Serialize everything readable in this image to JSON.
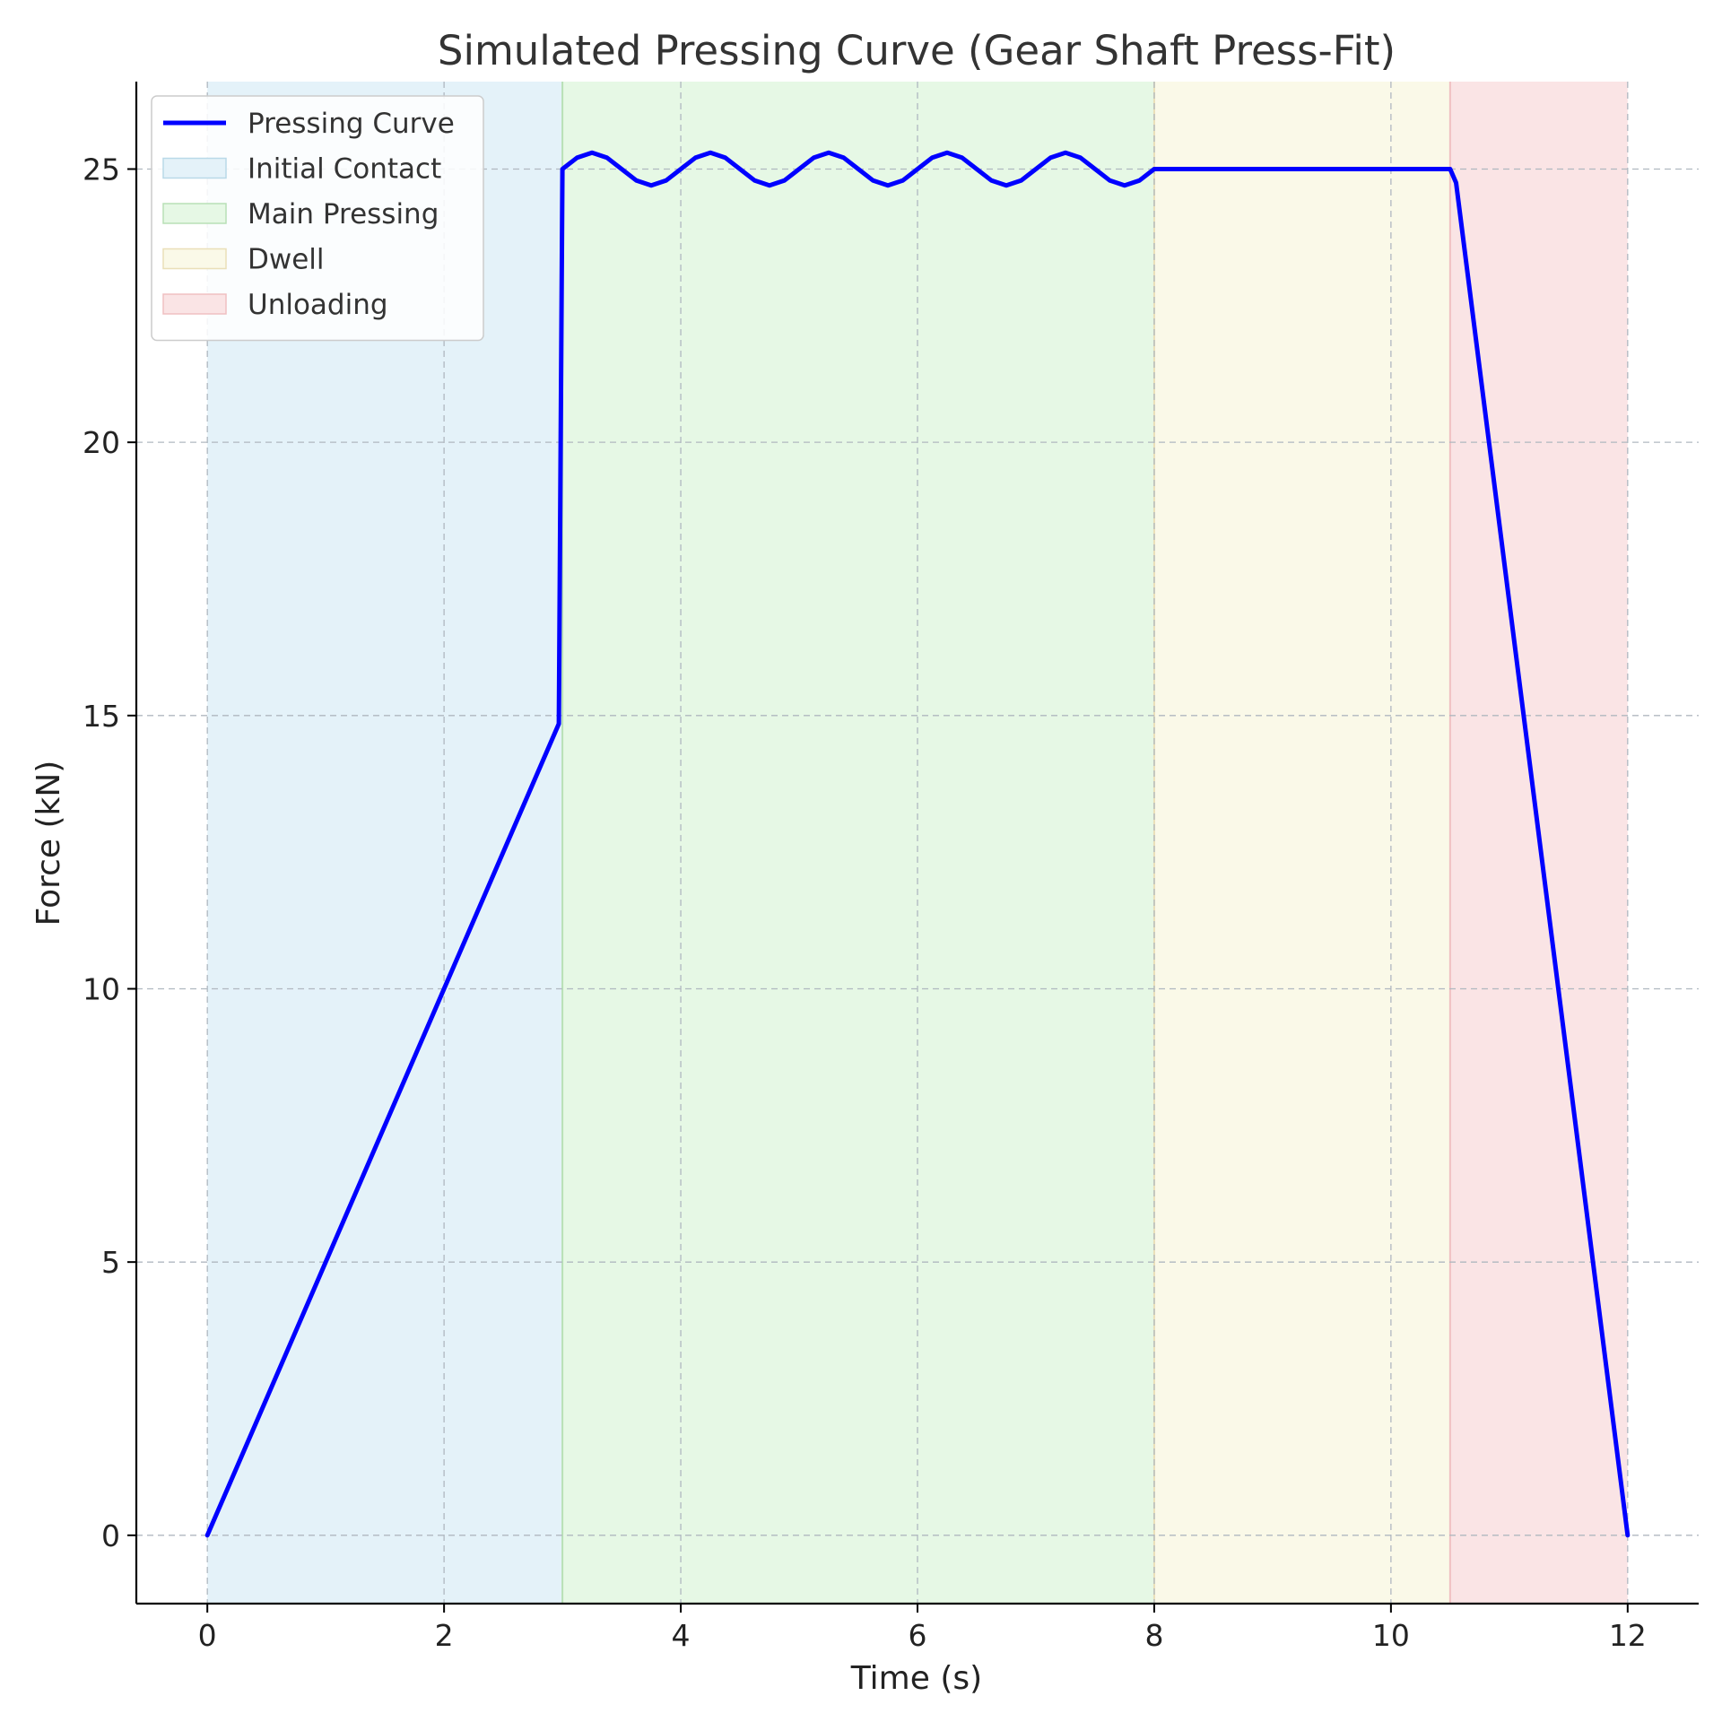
{
  "chart_data": {
    "type": "line",
    "title": "Simulated Pressing Curve (Gear Shaft Press-Fit)",
    "xlabel": "Time (s)",
    "ylabel": "Force (kN)",
    "xlim": [
      -0.6,
      12.6
    ],
    "ylim": [
      -1.25,
      26.6
    ],
    "xticks": [
      0,
      2,
      4,
      6,
      8,
      10,
      12
    ],
    "yticks": [
      0,
      5,
      10,
      15,
      20,
      25
    ],
    "grid": true,
    "legend_position": "top-left",
    "series": [
      {
        "name": "Pressing Curve",
        "color": "#0000ff",
        "x": [
          0,
          2.97,
          3.0,
          3.125,
          3.25,
          3.375,
          3.5,
          3.625,
          3.75,
          3.875,
          4.0,
          4.125,
          4.25,
          4.375,
          4.5,
          4.625,
          4.75,
          4.875,
          5.0,
          5.125,
          5.25,
          5.375,
          5.5,
          5.625,
          5.75,
          5.875,
          6.0,
          6.125,
          6.25,
          6.375,
          6.5,
          6.625,
          6.75,
          6.875,
          7.0,
          7.125,
          7.25,
          7.375,
          7.5,
          7.625,
          7.75,
          7.875,
          8.0,
          10.5,
          10.55,
          12.0
        ],
        "values": [
          0,
          14.85,
          25.0,
          25.21,
          25.3,
          25.21,
          25.0,
          24.79,
          24.7,
          24.79,
          25.0,
          25.21,
          25.3,
          25.21,
          25.0,
          24.79,
          24.7,
          24.79,
          25.0,
          25.21,
          25.3,
          25.21,
          25.0,
          24.79,
          24.7,
          24.79,
          25.0,
          25.21,
          25.3,
          25.21,
          25.0,
          24.79,
          24.7,
          24.79,
          25.0,
          25.21,
          25.3,
          25.21,
          25.0,
          24.79,
          24.7,
          24.79,
          25.0,
          25.0,
          24.75,
          0
        ]
      }
    ],
    "phases": [
      {
        "name": "Initial Contact",
        "start": 0,
        "end": 3,
        "color": "#e4f2f9",
        "edge": "#b9d9e8"
      },
      {
        "name": "Main Pressing",
        "start": 3,
        "end": 8,
        "color": "#e6f8e5",
        "edge": "#b8e0b6"
      },
      {
        "name": "Dwell",
        "start": 8,
        "end": 10.5,
        "color": "#faf9e8",
        "edge": "#eadfb8"
      },
      {
        "name": "Unloading",
        "start": 10.5,
        "end": 12,
        "color": "#fae4e5",
        "edge": "#f0c0c2"
      }
    ]
  }
}
